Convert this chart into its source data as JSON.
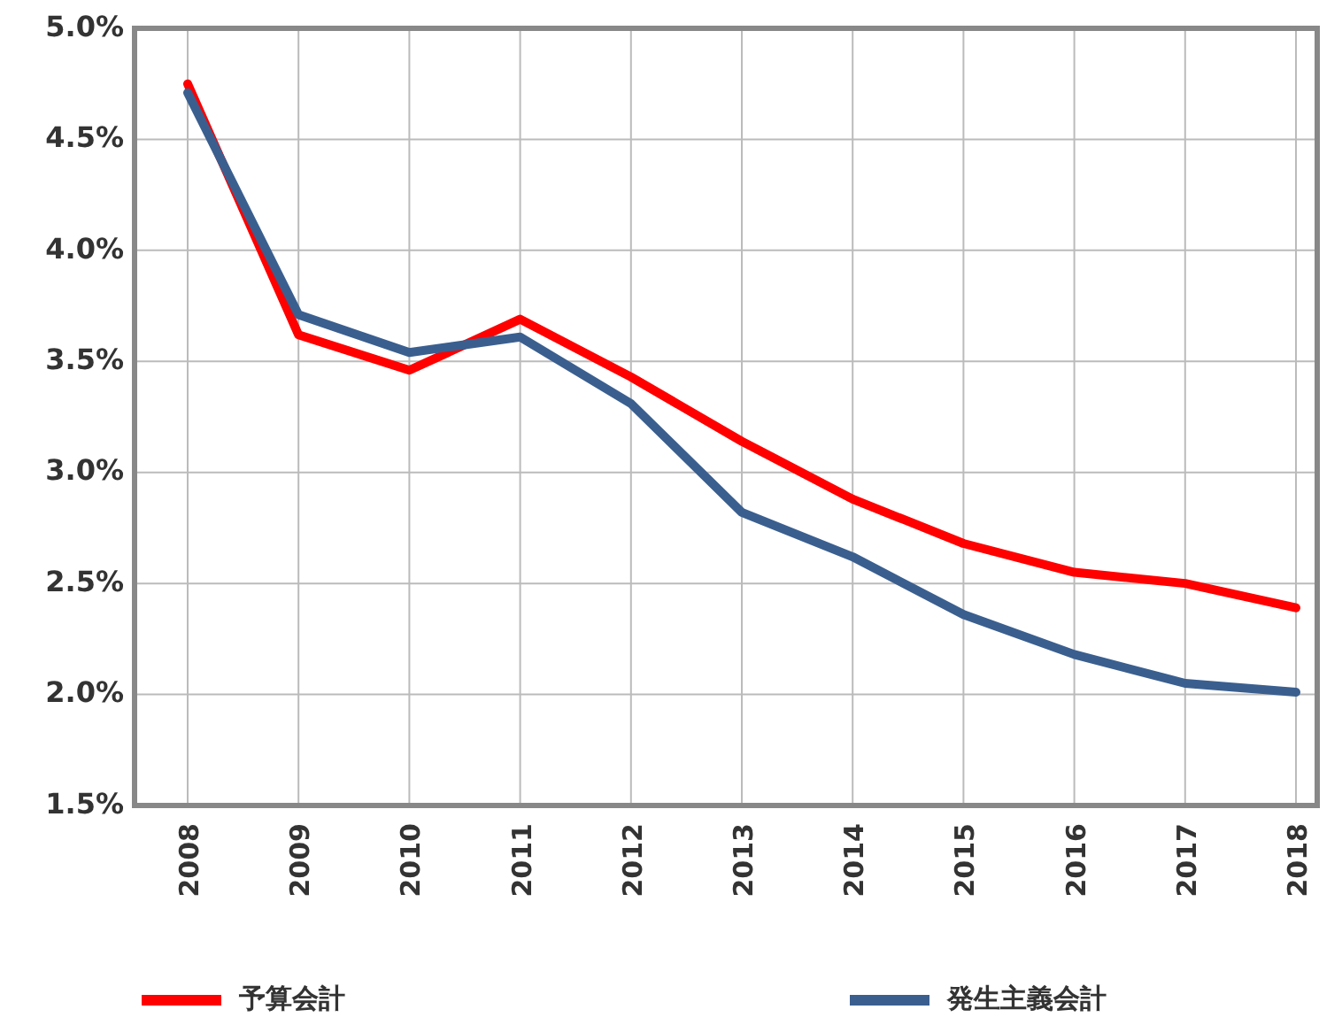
{
  "chart_data": {
    "type": "line",
    "categories": [
      "2008",
      "2009",
      "2010",
      "2011",
      "2012",
      "2013",
      "2014",
      "2015",
      "2016",
      "2017",
      "2018"
    ],
    "series": [
      {
        "name": "予算会計",
        "color": "#ff0000",
        "values": [
          4.75,
          3.62,
          3.46,
          3.69,
          3.43,
          3.14,
          2.88,
          2.68,
          2.55,
          2.5,
          2.39
        ]
      },
      {
        "name": "発生主義会計",
        "color": "#3a5f8f",
        "values": [
          4.71,
          3.71,
          3.54,
          3.61,
          3.31,
          2.82,
          2.62,
          2.36,
          2.18,
          2.05,
          2.01
        ]
      }
    ],
    "ylim": [
      1.5,
      5.0
    ],
    "yticks": [
      {
        "value": 1.5,
        "label": "1.5%"
      },
      {
        "value": 2.0,
        "label": "2.0%"
      },
      {
        "value": 2.5,
        "label": "2.5%"
      },
      {
        "value": 3.0,
        "label": "3.0%"
      },
      {
        "value": 3.5,
        "label": "3.5%"
      },
      {
        "value": 4.0,
        "label": "4.0%"
      },
      {
        "value": 4.5,
        "label": "4.5%"
      },
      {
        "value": 5.0,
        "label": "5.0%"
      }
    ],
    "grid": true,
    "legend": "bottom",
    "marker": "none",
    "line_style": "solid"
  }
}
